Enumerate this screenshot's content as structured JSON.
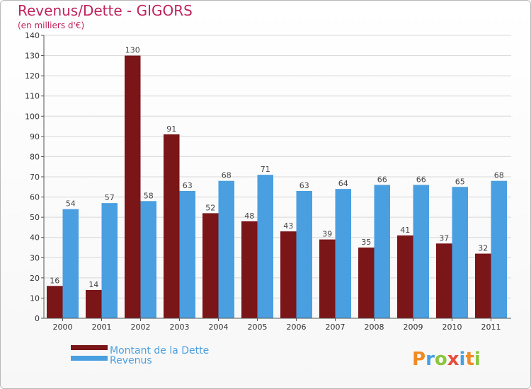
{
  "chart_data": {
    "type": "bar",
    "title": "Revenus/Dette - GIGORS",
    "subtitle": "(en milliers d'€)",
    "categories": [
      "2000",
      "2001",
      "2002",
      "2003",
      "2004",
      "2005",
      "2006",
      "2007",
      "2008",
      "2009",
      "2010",
      "2011"
    ],
    "series": [
      {
        "name": "Montant de la Dette",
        "values": [
          16,
          14,
          130,
          91,
          52,
          48,
          43,
          39,
          35,
          41,
          37,
          32
        ],
        "color": "#7a1518"
      },
      {
        "name": "Revenus",
        "values": [
          54,
          57,
          58,
          63,
          68,
          71,
          63,
          64,
          66,
          66,
          65,
          68
        ],
        "color": "#4a9fe0"
      }
    ],
    "ylim": [
      0,
      140
    ],
    "yticks": [
      0,
      10,
      20,
      30,
      40,
      50,
      60,
      70,
      80,
      90,
      100,
      110,
      120,
      130,
      140
    ],
    "grid": true,
    "legend": "bottom-left",
    "colors": {
      "title": "#c0245c",
      "axis_text": "#333333",
      "grid": "#d8d8d8",
      "label_text": "#444444"
    }
  },
  "branding": {
    "logo_text": "Proxiti",
    "logo_colors": [
      "#f08a24",
      "#4a9fe0",
      "#8cc63f",
      "#e84c3d",
      "#4a9fe0",
      "#f08a24",
      "#8cc63f"
    ]
  }
}
